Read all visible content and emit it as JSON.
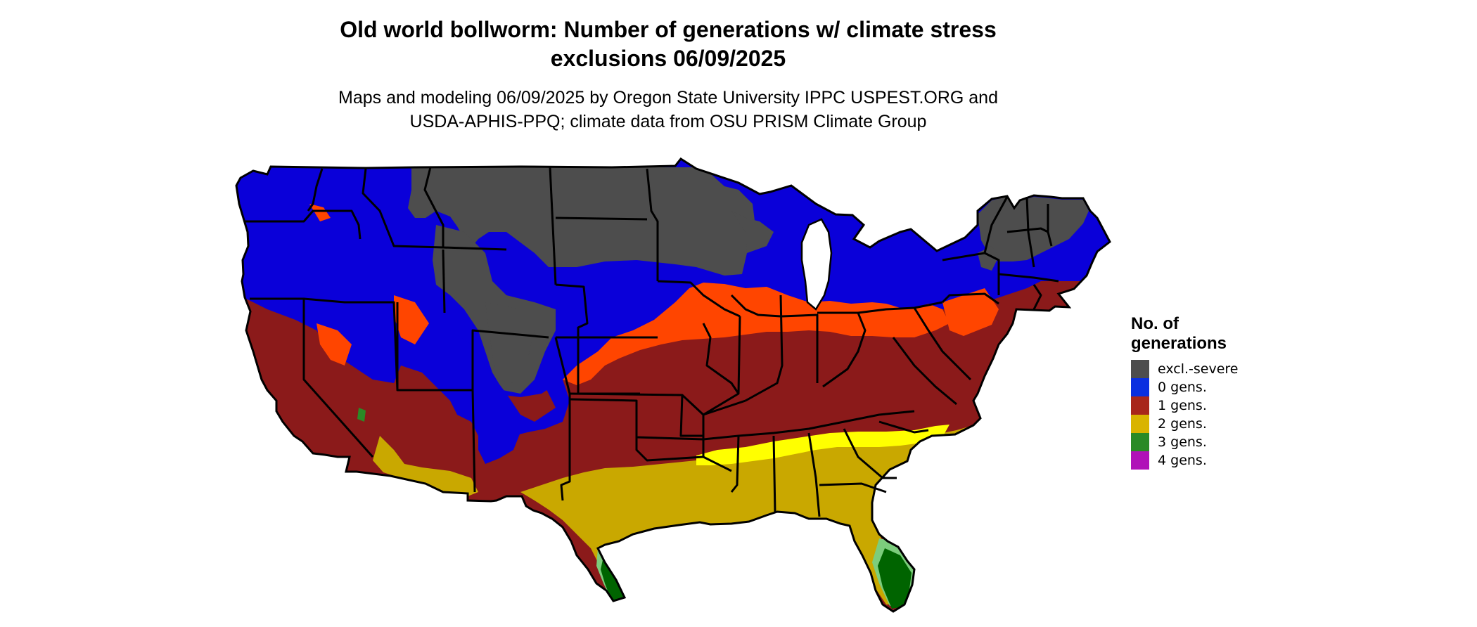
{
  "title": {
    "line1": "Old world bollworm: Number of generations w/ climate stress",
    "line2": "exclusions 06/09/2025"
  },
  "subtitle": {
    "line1": "Maps and modeling 06/09/2025 by Oregon State University IPPC USPEST.ORG and",
    "line2": "USDA-APHIS-PPQ; climate data from OSU PRISM Climate Group"
  },
  "legend": {
    "title_line1": "No. of",
    "title_line2": "generations",
    "items": [
      {
        "label": "excl.-severe",
        "color": "#4d4d4d"
      },
      {
        "label": "0 gens.",
        "color": "#0a2fe0"
      },
      {
        "label": "1 gens.",
        "color": "#a8261b"
      },
      {
        "label": "2 gens.",
        "color": "#d9b400"
      },
      {
        "label": "3 gens.",
        "color": "#2a8a26"
      },
      {
        "label": "4 gens.",
        "color": "#b012b8"
      }
    ]
  },
  "map_colors": {
    "excluded": "#4d4d4d",
    "zero": "#0a00d9",
    "one": "#8b1a1a",
    "one_high": "#ff4500",
    "two": "#c9a800",
    "two_high": "#ffff00",
    "three": "#006400",
    "three_light": "#7ccd7c",
    "four": "#cd00cd",
    "border": "#000000"
  }
}
